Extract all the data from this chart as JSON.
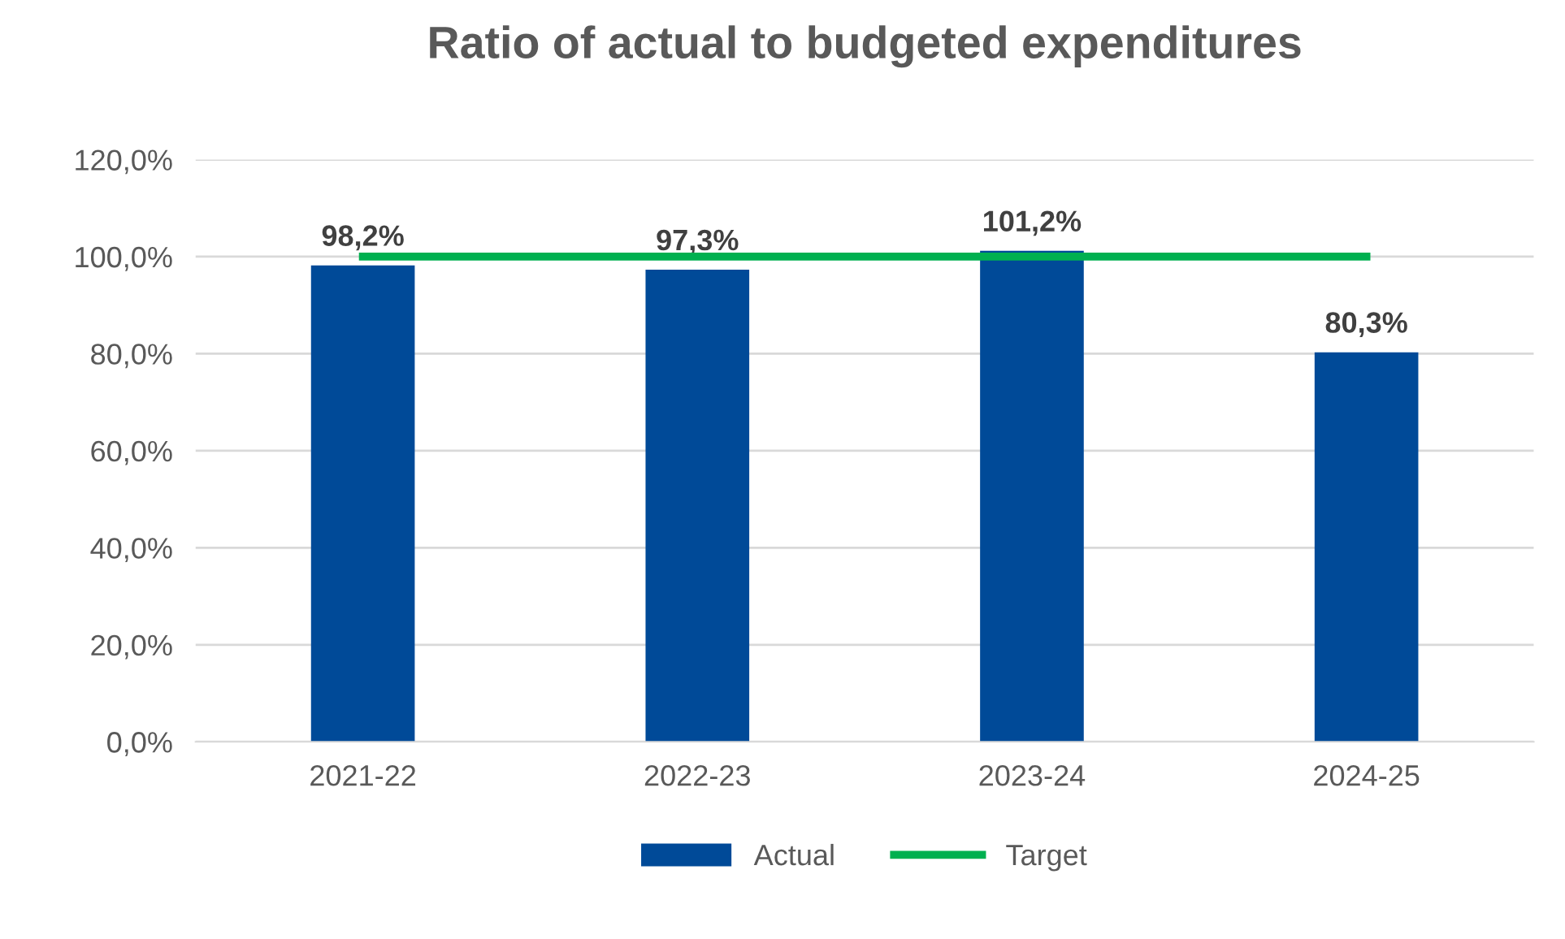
{
  "chart_data": {
    "type": "bar",
    "title": "Ratio of actual to budgeted expenditures",
    "categories": [
      "2021-22",
      "2022-23",
      "2023-24",
      "2024-25"
    ],
    "series": [
      {
        "name": "Actual",
        "color": "#004a98",
        "values": [
          98.2,
          97.3,
          101.2,
          80.3
        ],
        "value_labels": [
          "98,2%",
          "97,3%",
          "101,2%",
          "80,3%"
        ]
      },
      {
        "name": "Target",
        "type": "line",
        "color": "#00b050",
        "values": [
          100,
          100,
          100,
          100
        ]
      }
    ],
    "ylim": [
      0,
      120
    ],
    "yticks": [
      {
        "value": 0,
        "label": "0,0%"
      },
      {
        "value": 20,
        "label": "20,0%"
      },
      {
        "value": 40,
        "label": "40,0%"
      },
      {
        "value": 60,
        "label": "60,0%"
      },
      {
        "value": 80,
        "label": "80,0%"
      },
      {
        "value": 100,
        "label": "100,0%"
      },
      {
        "value": 120,
        "label": "120,0%"
      }
    ],
    "grid": "y",
    "legend": "bottom",
    "marker": "none",
    "line_style": "solid"
  }
}
